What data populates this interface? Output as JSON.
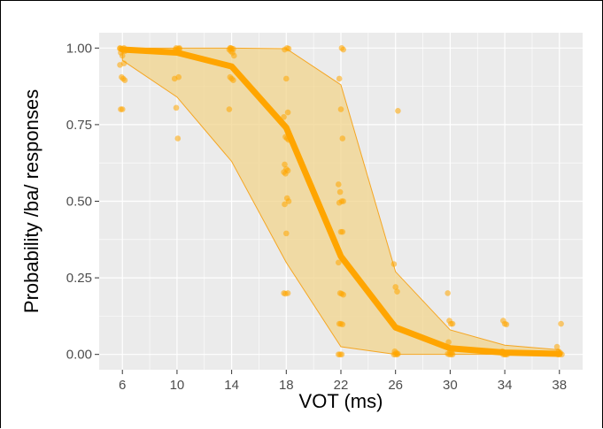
{
  "chart_data": {
    "type": "line",
    "xlabel": "VOT (ms)",
    "ylabel": "Probability /ba/ responses",
    "xlim": [
      4.3,
      39.7
    ],
    "ylim": [
      -0.05,
      1.05
    ],
    "x_ticks": [
      6,
      10,
      14,
      18,
      22,
      26,
      30,
      34,
      38
    ],
    "y_ticks": [
      0.0,
      0.25,
      0.5,
      0.75,
      1.0
    ],
    "y_tick_labels": [
      "0.00",
      "0.25",
      "0.50",
      "0.75",
      "1.00"
    ],
    "grid": true,
    "colors": {
      "series": "#FFA500",
      "band_fill": "#F2D48C",
      "band_edge": "#F5A623",
      "panel": "#EBEBEB",
      "grid": "#FFFFFF"
    },
    "series": [
      {
        "x": [
          6,
          10,
          14,
          18,
          22,
          26,
          30,
          34,
          38
        ],
        "y": [
          0.995,
          0.985,
          0.94,
          0.74,
          0.32,
          0.088,
          0.02,
          0.006,
          0.002
        ]
      }
    ],
    "band": {
      "x": [
        6,
        10,
        14,
        18,
        22,
        26,
        30,
        34,
        38
      ],
      "upper": [
        1.0,
        1.0,
        1.0,
        0.998,
        0.88,
        0.27,
        0.08,
        0.03,
        0.015
      ],
      "lower": [
        0.96,
        0.84,
        0.63,
        0.3,
        0.025,
        0.0,
        0.0,
        0.0,
        0.0
      ]
    },
    "points": [
      [
        6,
        1.0
      ],
      [
        6,
        0.998
      ],
      [
        6,
        0.995
      ],
      [
        6,
        0.99
      ],
      [
        6,
        0.985
      ],
      [
        6,
        0.975
      ],
      [
        6,
        0.95
      ],
      [
        6,
        0.945
      ],
      [
        6,
        0.905
      ],
      [
        6,
        0.9
      ],
      [
        6,
        0.895
      ],
      [
        6,
        0.8
      ],
      [
        6,
        0.8
      ],
      [
        6,
        1.0
      ],
      [
        6,
        0.998
      ],
      [
        10,
        1.0
      ],
      [
        10,
        0.998
      ],
      [
        10,
        0.997
      ],
      [
        10,
        0.995
      ],
      [
        10,
        0.99
      ],
      [
        10,
        0.905
      ],
      [
        10,
        0.9
      ],
      [
        10,
        0.805
      ],
      [
        10,
        0.705
      ],
      [
        10,
        1.0
      ],
      [
        14,
        1.0
      ],
      [
        14,
        0.998
      ],
      [
        14,
        0.997
      ],
      [
        14,
        0.995
      ],
      [
        14,
        0.99
      ],
      [
        14,
        0.985
      ],
      [
        14,
        0.975
      ],
      [
        14,
        0.905
      ],
      [
        14,
        0.9
      ],
      [
        14,
        0.895
      ],
      [
        14,
        0.8
      ],
      [
        14,
        1.0
      ],
      [
        18,
        1.0
      ],
      [
        18,
        0.998
      ],
      [
        18,
        0.995
      ],
      [
        18,
        0.9
      ],
      [
        18,
        0.79
      ],
      [
        18,
        0.775
      ],
      [
        18,
        0.71
      ],
      [
        18,
        0.705
      ],
      [
        18,
        0.7
      ],
      [
        18,
        0.62
      ],
      [
        18,
        0.605
      ],
      [
        18,
        0.6
      ],
      [
        18,
        0.595
      ],
      [
        18,
        0.59
      ],
      [
        18,
        0.51
      ],
      [
        18,
        0.5
      ],
      [
        18,
        0.49
      ],
      [
        18,
        0.395
      ],
      [
        18,
        0.2
      ],
      [
        18,
        0.2
      ],
      [
        18,
        0.198
      ],
      [
        22,
        1.0
      ],
      [
        22,
        0.995
      ],
      [
        22,
        0.9
      ],
      [
        22,
        0.8
      ],
      [
        22,
        0.705
      ],
      [
        22,
        0.555
      ],
      [
        22,
        0.53
      ],
      [
        22,
        0.5
      ],
      [
        22,
        0.5
      ],
      [
        22,
        0.495
      ],
      [
        22,
        0.4
      ],
      [
        22,
        0.4
      ],
      [
        22,
        0.3
      ],
      [
        22,
        0.2
      ],
      [
        22,
        0.198
      ],
      [
        22,
        0.195
      ],
      [
        22,
        0.1
      ],
      [
        22,
        0.1
      ],
      [
        22,
        0.098
      ],
      [
        22,
        0.0
      ],
      [
        22,
        0.0
      ],
      [
        22,
        0.0
      ],
      [
        26,
        0.795
      ],
      [
        26,
        0.295
      ],
      [
        26,
        0.22
      ],
      [
        26,
        0.205
      ],
      [
        26,
        0.1
      ],
      [
        26,
        0.01
      ],
      [
        26,
        0.005
      ],
      [
        26,
        0.002
      ],
      [
        26,
        0.0
      ],
      [
        26,
        0.0
      ],
      [
        26,
        0.0
      ],
      [
        30,
        0.2
      ],
      [
        30,
        0.11
      ],
      [
        30,
        0.1
      ],
      [
        30,
        0.1
      ],
      [
        30,
        0.04
      ],
      [
        30,
        0.01
      ],
      [
        30,
        0.005
      ],
      [
        30,
        0.002
      ],
      [
        30,
        0.0
      ],
      [
        30,
        0.0
      ],
      [
        30,
        0.0
      ],
      [
        34,
        0.11
      ],
      [
        34,
        0.1
      ],
      [
        34,
        0.098
      ],
      [
        34,
        0.01
      ],
      [
        34,
        0.005
      ],
      [
        34,
        0.0
      ],
      [
        34,
        0.0
      ],
      [
        34,
        0.0
      ],
      [
        34,
        0.0
      ],
      [
        38,
        0.1
      ],
      [
        38,
        0.025
      ],
      [
        38,
        0.01
      ],
      [
        38,
        0.005
      ],
      [
        38,
        0.0
      ],
      [
        38,
        0.0
      ],
      [
        38,
        0.0
      ]
    ]
  }
}
